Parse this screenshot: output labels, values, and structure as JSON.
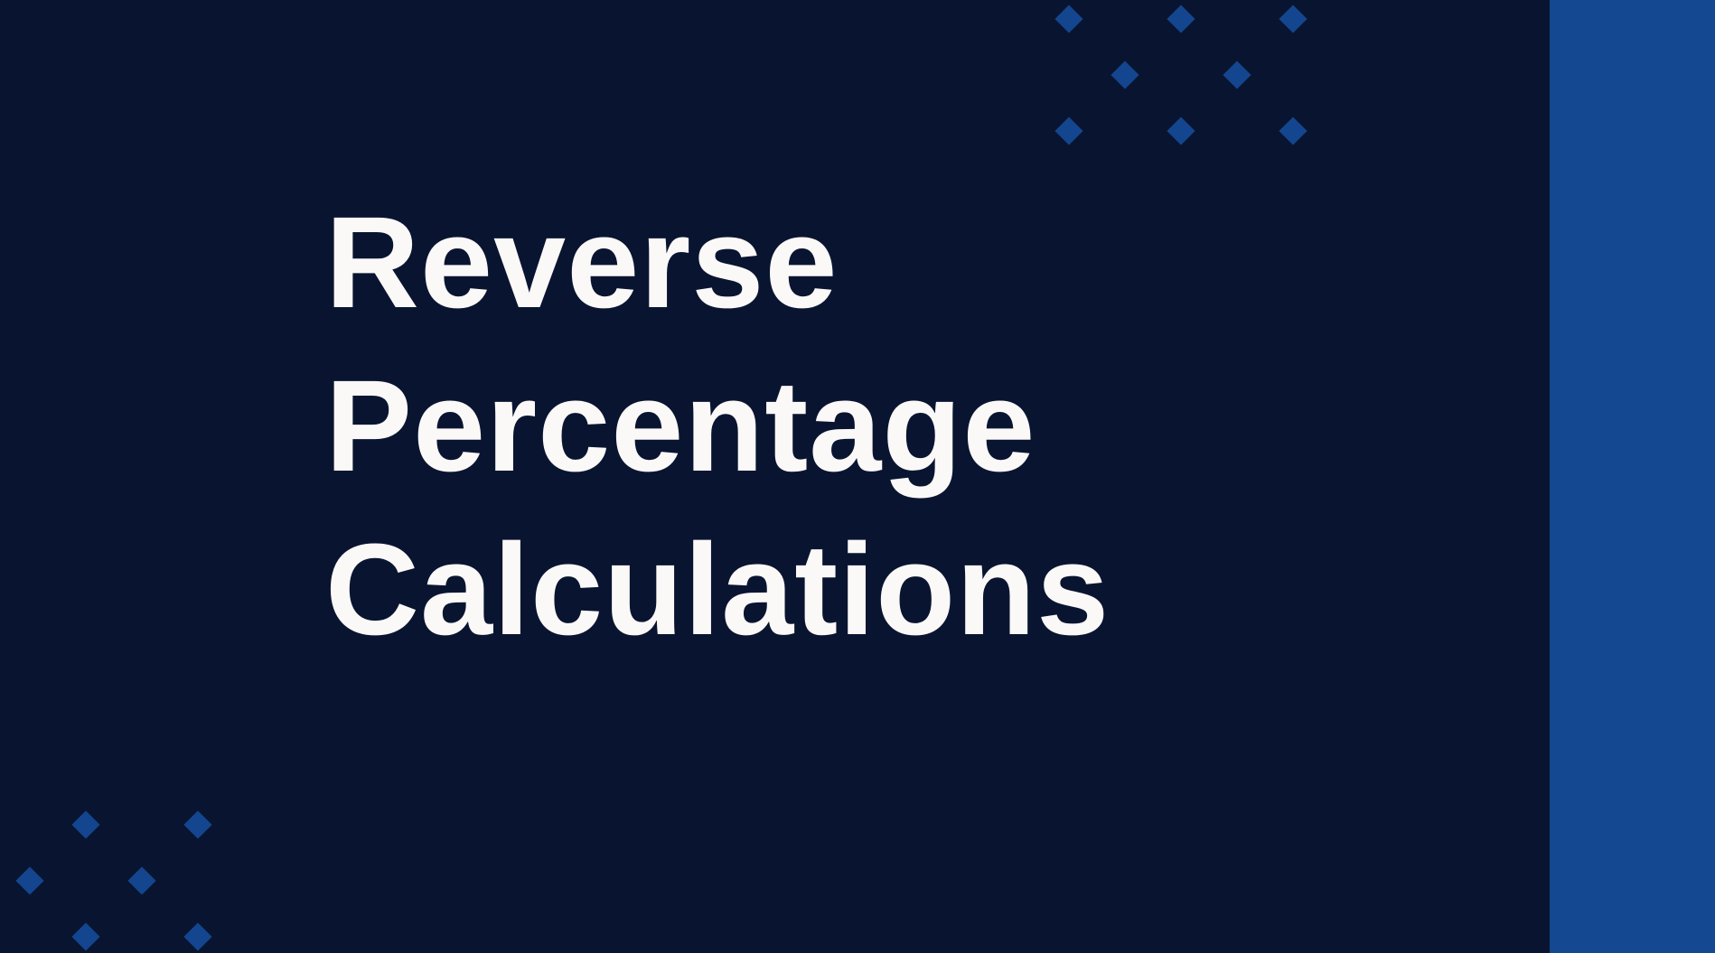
{
  "slide": {
    "title_lines": [
      "Reverse",
      "Percentage",
      "Calculations"
    ]
  },
  "colors": {
    "background": "#091530",
    "side_bar": "#144890",
    "title_text": "#fbf8f8",
    "diamond": "#14468f"
  },
  "decorations": {
    "top_pattern_icon": "diamond-icon",
    "bottom_pattern_icon": "diamond-icon"
  }
}
